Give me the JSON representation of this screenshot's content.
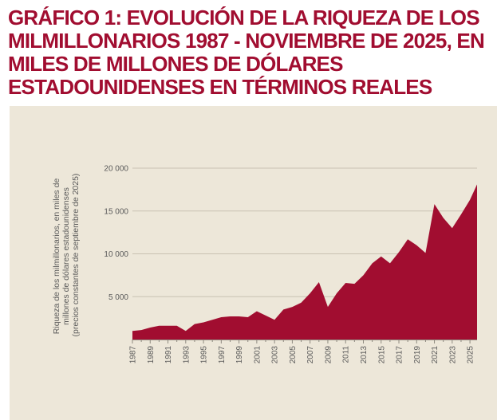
{
  "chart_data": {
    "type": "area",
    "title": "GRÁFICO 1: EVOLUCIÓN DE LA RIQUEZA DE LOS MILMILLONARIOS 1987 - NOVIEMBRE DE 2025, EN MILES DE MILLONES DE DÓLARES ESTADOUNIDENSES EN TÉRMINOS REALES",
    "ylabel_lines": [
      "Riqueza de los milmillonarios, en miles de",
      "millones de dólares estadounidenses",
      "(precios constantes de septiembre de 2025)"
    ],
    "xlabel": "",
    "xlim": [
      1987,
      2025.8
    ],
    "ylim": [
      0,
      20000
    ],
    "grid": true,
    "colors": {
      "area": "#a10d30",
      "grid": "#c9c2b2",
      "background": "#ede7d9",
      "title": "#a10d30"
    },
    "y_ticks": [
      {
        "value": 5000,
        "label": "5 000"
      },
      {
        "value": 10000,
        "label": "10 000"
      },
      {
        "value": 15000,
        "label": "15 000"
      },
      {
        "value": 20000,
        "label": "20 000"
      }
    ],
    "x_ticks": [
      "1987",
      "1989",
      "1991",
      "1993",
      "1995",
      "1997",
      "1999",
      "2001",
      "2003",
      "2005",
      "2007",
      "2009",
      "2011",
      "2013",
      "2015",
      "2017",
      "2019",
      "2021",
      "2023",
      "2025"
    ],
    "x": [
      1987,
      1988,
      1989,
      1990,
      1991,
      1992,
      1993,
      1994,
      1995,
      1996,
      1997,
      1998,
      1999,
      2000,
      2001,
      2002,
      2003,
      2004,
      2005,
      2006,
      2007,
      2008,
      2009,
      2010,
      2011,
      2012,
      2013,
      2014,
      2015,
      2016,
      2017,
      2018,
      2019,
      2020,
      2021,
      2022,
      2023,
      2024,
      2025,
      2025.8
    ],
    "values": [
      1000,
      1100,
      1400,
      1600,
      1600,
      1600,
      1000,
      1800,
      2000,
      2300,
      2600,
      2700,
      2700,
      2600,
      3300,
      2800,
      2300,
      3500,
      3800,
      4300,
      5400,
      6700,
      3800,
      5400,
      6600,
      6500,
      7500,
      8900,
      9700,
      8900,
      10200,
      11700,
      11000,
      10100,
      15800,
      14200,
      13000,
      14600,
      16300,
      18100
    ]
  }
}
